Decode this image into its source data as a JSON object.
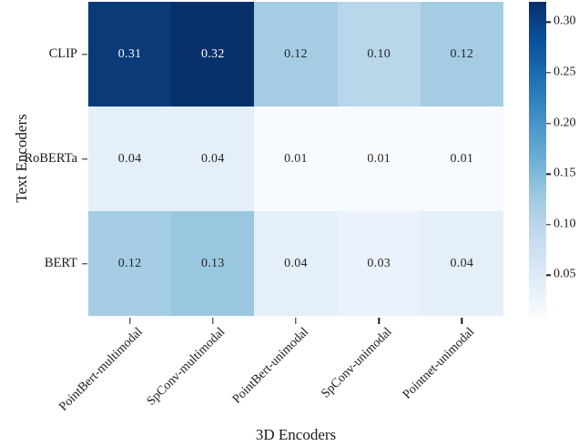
{
  "figure": {
    "background": "#ffffff",
    "text_color": "#1a1a1a"
  },
  "chart_data": {
    "type": "heatmap",
    "title": "",
    "xlabel": "3D Encoders",
    "ylabel": "Text Encoders",
    "colormap": "Blues",
    "columns": [
      "PointBert-multimodal",
      "SpConv-multimodal",
      "PointBert-unimodal",
      "SpConv-unimodal",
      "Pointnet-unimodal"
    ],
    "rows": [
      "CLIP",
      "RoBERTa",
      "BERT"
    ],
    "values": [
      [
        0.31,
        0.32,
        0.12,
        0.1,
        0.12
      ],
      [
        0.04,
        0.04,
        0.01,
        0.01,
        0.01
      ],
      [
        0.12,
        0.13,
        0.04,
        0.03,
        0.04
      ]
    ],
    "cell_colors": [
      [
        "#0a3a78",
        "#08306b",
        "#a4cde3",
        "#b9d6eb",
        "#a4cde3"
      ],
      [
        "#e4eff9",
        "#e4eff9",
        "#f7fbff",
        "#f7fbff",
        "#f7fbff"
      ],
      [
        "#a4cde3",
        "#99c7e0",
        "#e4eff9",
        "#eaf3fb",
        "#e4eff9"
      ]
    ],
    "annotation_colors": {
      "on_dark": "#ffffff",
      "on_light": "#262626"
    },
    "colorbar": {
      "min": 0.01,
      "max": 0.32,
      "ticks": [
        0.3,
        0.25,
        0.2,
        0.15,
        0.1,
        0.05
      ],
      "gradient_top_to_bottom": [
        "#08306b",
        "#08519c",
        "#2171b5",
        "#4292c6",
        "#6baed6",
        "#9ecae1",
        "#c6dbef",
        "#deebf7",
        "#f7fbff"
      ]
    }
  }
}
